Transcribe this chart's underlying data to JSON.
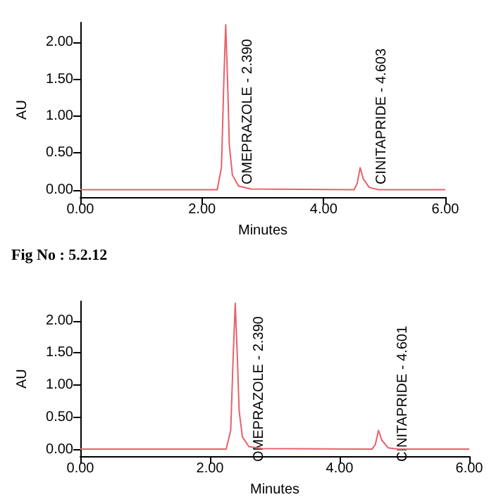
{
  "chart_data": [
    {
      "type": "line",
      "xlabel": "Minutes",
      "ylabel": "AU",
      "x": [
        0,
        2.25,
        2.32,
        2.36,
        2.39,
        2.42,
        2.45,
        2.5,
        2.6,
        2.8,
        4.5,
        4.55,
        4.6,
        4.65,
        4.75,
        4.9,
        6
      ],
      "series": [
        {
          "color": "#e8606a",
          "values": [
            0,
            0,
            0.3,
            1.5,
            2.24,
            1.5,
            0.6,
            0.2,
            0.05,
            0.01,
            0,
            0.08,
            0.3,
            0.15,
            0.03,
            0,
            0
          ]
        }
      ],
      "xlim": [
        0,
        6
      ],
      "xticks": [
        {
          "value": 0,
          "label": "0.00"
        },
        {
          "value": 2,
          "label": "2.00"
        },
        {
          "value": 4,
          "label": "4.00"
        },
        {
          "value": 6,
          "label": "6.00"
        }
      ],
      "ylim": [
        -0.1,
        2.27
      ],
      "yticks": [
        {
          "value": 0,
          "label": "0.00"
        },
        {
          "value": 0.5,
          "label": "0.50"
        },
        {
          "value": 1,
          "label": "1.00"
        },
        {
          "value": 1.5,
          "label": "1.50"
        },
        {
          "value": 2,
          "label": "2.00"
        }
      ],
      "marker": "none",
      "grid": false,
      "annotations": [
        "OMEPRAZOLE - 2.390",
        "CINITAPRIDE - 4.603",
        "Fig No : 5.2.12"
      ]
    },
    {
      "type": "line",
      "xlabel": "Minutes",
      "ylabel": "AU",
      "x": [
        0,
        2.25,
        2.32,
        2.36,
        2.39,
        2.42,
        2.45,
        2.5,
        2.6,
        2.8,
        4.5,
        4.55,
        4.6,
        4.65,
        4.75,
        4.9,
        6
      ],
      "series": [
        {
          "color": "#e8606a",
          "values": [
            0.01,
            0.01,
            0.3,
            1.5,
            2.27,
            1.5,
            0.6,
            0.2,
            0.05,
            0.02,
            0.01,
            0.08,
            0.3,
            0.15,
            0.03,
            0.01,
            0.01
          ]
        }
      ],
      "xlim": [
        0,
        6
      ],
      "xticks": [
        {
          "value": 0,
          "label": "0.00"
        },
        {
          "value": 2,
          "label": "2.00"
        },
        {
          "value": 4,
          "label": "4.00"
        },
        {
          "value": 6,
          "label": "6.00"
        }
      ],
      "ylim": [
        -0.1,
        2.3
      ],
      "yticks": [
        {
          "value": 0,
          "label": "0.00"
        },
        {
          "value": 0.5,
          "label": "0.50"
        },
        {
          "value": 1,
          "label": "1.00"
        },
        {
          "value": 1.5,
          "label": "1.50"
        },
        {
          "value": 2,
          "label": "2.00"
        }
      ],
      "marker": "none",
      "grid": false,
      "annotations": [
        "OMEPRAZOLE - 2.390",
        "CINITAPRIDE - 4.601"
      ]
    }
  ]
}
